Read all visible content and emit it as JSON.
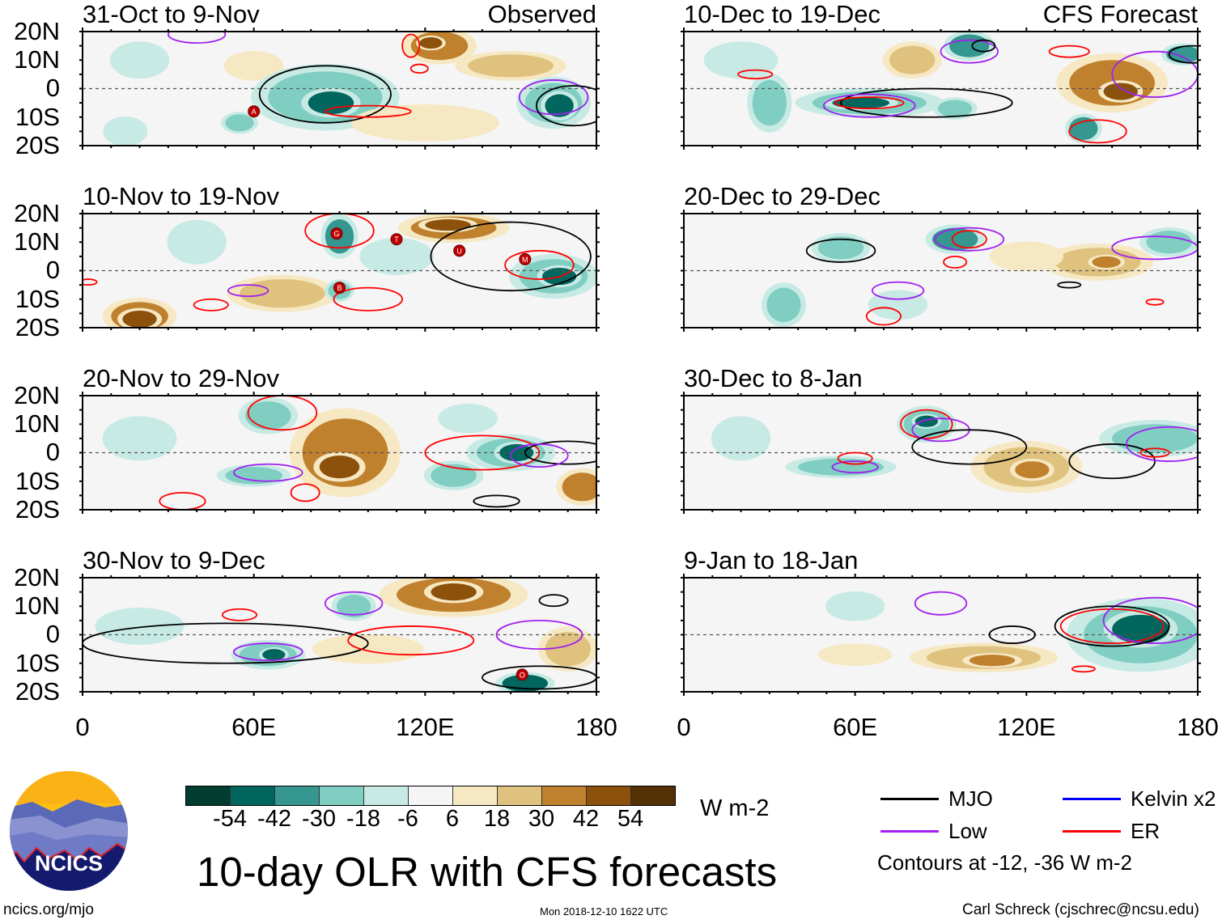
{
  "chart_data": {
    "type": "heatmap",
    "title": "10-day OLR with CFS forecasts",
    "units": "W m-2",
    "colorbar": {
      "ticks": [
        "-54",
        "-42",
        "-30",
        "-18",
        "-6",
        "6",
        "18",
        "30",
        "42",
        "54"
      ],
      "colors": [
        "#003c30",
        "#01665e",
        "#35978f",
        "#80cdc1",
        "#c7eae5",
        "#f5f5f5",
        "#f6e8c3",
        "#dfc27d",
        "#bf812d",
        "#8c510a",
        "#543005"
      ]
    },
    "lat_labels": [
      "20N",
      "10N",
      "0",
      "10S",
      "20S"
    ],
    "lon_labels": [
      "0",
      "60E",
      "120E",
      "180"
    ],
    "lon_range": [
      0,
      180
    ],
    "lat_range": [
      -20,
      20
    ],
    "contour_colors": {
      "MJO": "#000000",
      "Kelvin": "#0000ff",
      "Low": "#a020f0",
      "ER": "#ff0000"
    },
    "panels": [
      {
        "title": "31-Oct to 9-Nov",
        "tag": "Observed",
        "anomalies": [
          [
            60,
            8,
            8,
            4,
            15
          ],
          [
            85,
            -3,
            20,
            9,
            -20
          ],
          [
            87,
            -5,
            8,
            4,
            -45
          ],
          [
            55,
            -12,
            5,
            3,
            -25
          ],
          [
            125,
            15,
            10,
            5,
            30
          ],
          [
            122,
            16,
            4,
            2,
            45
          ],
          [
            150,
            8,
            15,
            4,
            25
          ],
          [
            20,
            10,
            8,
            5,
            -15
          ],
          [
            165,
            -5,
            10,
            7,
            -30
          ],
          [
            167,
            -6,
            5,
            4,
            -45
          ],
          [
            120,
            -12,
            20,
            5,
            10
          ],
          [
            15,
            -15,
            6,
            4,
            -10
          ]
        ],
        "contours": [
          [
            "MJO",
            85,
            -2,
            23,
            10
          ],
          [
            "ER",
            100,
            -8,
            15,
            2
          ],
          [
            "ER",
            115,
            15,
            3,
            4
          ],
          [
            "ER",
            118,
            7,
            3,
            1.5
          ],
          [
            "Low",
            165,
            -3,
            12,
            6
          ],
          [
            "MJO",
            172,
            -6,
            13,
            7
          ],
          [
            "Low",
            40,
            19,
            10,
            3
          ]
        ],
        "cyclones": [
          [
            "A",
            60,
            -8
          ]
        ]
      },
      {
        "title": "10-Nov to 19-Nov",
        "tag": "",
        "anomalies": [
          [
            20,
            -16,
            10,
            5,
            30
          ],
          [
            20,
            -17,
            6,
            3,
            45
          ],
          [
            70,
            -8,
            15,
            5,
            18
          ],
          [
            90,
            12,
            5,
            6,
            -40
          ],
          [
            90,
            -7,
            4,
            3,
            -25
          ],
          [
            130,
            15,
            15,
            4,
            35
          ],
          [
            128,
            16,
            8,
            2,
            45
          ],
          [
            165,
            -2,
            12,
            6,
            -30
          ],
          [
            167,
            -2,
            6,
            3,
            -45
          ],
          [
            40,
            10,
            8,
            6,
            -10
          ],
          [
            110,
            5,
            10,
            5,
            -15
          ]
        ],
        "contours": [
          [
            "ER",
            90,
            14,
            12,
            6
          ],
          [
            "ER",
            160,
            2,
            12,
            5
          ],
          [
            "Low",
            58,
            -7,
            7,
            2
          ],
          [
            "MJO",
            150,
            5,
            28,
            12
          ],
          [
            "ER",
            100,
            -10,
            12,
            4
          ],
          [
            "ER",
            45,
            -12,
            6,
            2
          ],
          [
            "ER",
            2,
            -4,
            3,
            1
          ]
        ],
        "cyclones": [
          [
            "G",
            89,
            13
          ],
          [
            "T",
            110,
            11
          ],
          [
            "U",
            132,
            7
          ],
          [
            "M",
            155,
            4
          ],
          [
            "B",
            90,
            -6
          ]
        ]
      },
      {
        "title": "20-Nov to 29-Nov",
        "tag": "",
        "anomalies": [
          [
            92,
            0,
            15,
            12,
            30
          ],
          [
            90,
            -5,
            7,
            4,
            45
          ],
          [
            65,
            13,
            8,
            5,
            -30
          ],
          [
            60,
            -8,
            10,
            3,
            -20
          ],
          [
            150,
            0,
            12,
            5,
            -30
          ],
          [
            152,
            0,
            6,
            3,
            -45
          ],
          [
            130,
            -8,
            8,
            4,
            -25
          ],
          [
            175,
            -12,
            7,
            5,
            30
          ],
          [
            135,
            12,
            8,
            4,
            -15
          ],
          [
            20,
            5,
            10,
            6,
            -10
          ]
        ],
        "contours": [
          [
            "ER",
            70,
            14,
            12,
            6
          ],
          [
            "ER",
            140,
            0,
            20,
            6
          ],
          [
            "MJO",
            170,
            0,
            15,
            4
          ],
          [
            "Low",
            160,
            -1,
            10,
            4
          ],
          [
            "Low",
            65,
            -7,
            12,
            3
          ],
          [
            "ER",
            35,
            -17,
            8,
            3
          ],
          [
            "MJO",
            145,
            -17,
            8,
            2
          ],
          [
            "ER",
            78,
            -14,
            5,
            3
          ]
        ],
        "cyclones": []
      },
      {
        "title": "30-Nov to 9-Dec",
        "tag": "",
        "anomalies": [
          [
            130,
            14,
            20,
            6,
            30
          ],
          [
            130,
            15,
            8,
            3,
            45
          ],
          [
            65,
            -7,
            10,
            4,
            -30
          ],
          [
            67,
            -7,
            4,
            2,
            -45
          ],
          [
            20,
            3,
            12,
            5,
            -18
          ],
          [
            155,
            -17,
            8,
            3,
            -54
          ],
          [
            95,
            10,
            6,
            4,
            -20
          ],
          [
            170,
            -5,
            8,
            6,
            25
          ],
          [
            100,
            -5,
            15,
            4,
            12
          ]
        ],
        "contours": [
          [
            "MJO",
            50,
            -3,
            50,
            7
          ],
          [
            "ER",
            115,
            -2,
            22,
            5
          ],
          [
            "Low",
            95,
            11,
            10,
            4
          ],
          [
            "ER",
            55,
            7,
            6,
            2
          ],
          [
            "Low",
            160,
            0,
            15,
            5
          ],
          [
            "MJO",
            160,
            -15,
            20,
            4
          ],
          [
            "Low",
            65,
            -6,
            12,
            3
          ],
          [
            "MJO",
            165,
            12,
            5,
            2
          ]
        ],
        "cyclones": [
          [
            "O",
            154,
            -14
          ]
        ]
      },
      {
        "title": "10-Dec to 19-Dec",
        "tag": "CFS Forecast",
        "anomalies": [
          [
            65,
            -5,
            20,
            4,
            -30
          ],
          [
            62,
            -5,
            10,
            2,
            -54
          ],
          [
            95,
            -7,
            6,
            3,
            -30
          ],
          [
            100,
            15,
            7,
            4,
            -35
          ],
          [
            150,
            2,
            15,
            8,
            30
          ],
          [
            153,
            -1,
            6,
            3,
            45
          ],
          [
            80,
            10,
            8,
            5,
            18
          ],
          [
            140,
            -14,
            5,
            4,
            -35
          ],
          [
            175,
            12,
            6,
            3,
            -40
          ],
          [
            30,
            -5,
            6,
            8,
            -25
          ],
          [
            20,
            10,
            10,
            5,
            -10
          ]
        ],
        "contours": [
          [
            "MJO",
            85,
            -5,
            30,
            5
          ],
          [
            "ER",
            65,
            -5,
            12,
            2
          ],
          [
            "Low",
            65,
            -6,
            16,
            4
          ],
          [
            "Low",
            100,
            13,
            10,
            4
          ],
          [
            "ER",
            135,
            13,
            7,
            2
          ],
          [
            "Low",
            165,
            5,
            15,
            8
          ],
          [
            "ER",
            145,
            -15,
            10,
            4
          ],
          [
            "MJO",
            178,
            12,
            8,
            3
          ],
          [
            "ER",
            25,
            5,
            6,
            1.5
          ],
          [
            "MJO",
            105,
            15,
            4,
            2
          ]
        ],
        "cyclones": []
      },
      {
        "title": "20-Dec to 29-Dec",
        "tag": "",
        "anomalies": [
          [
            55,
            8,
            8,
            4,
            -30
          ],
          [
            95,
            11,
            8,
            4,
            -35
          ],
          [
            170,
            10,
            8,
            4,
            -25
          ],
          [
            145,
            3,
            15,
            5,
            20
          ],
          [
            148,
            3,
            5,
            2,
            35
          ],
          [
            35,
            -12,
            6,
            6,
            -25
          ],
          [
            75,
            -12,
            8,
            4,
            -15
          ],
          [
            120,
            5,
            10,
            4,
            15
          ]
        ],
        "contours": [
          [
            "MJO",
            55,
            7,
            12,
            4
          ],
          [
            "Low",
            100,
            11,
            12,
            4
          ],
          [
            "ER",
            100,
            11,
            6,
            3
          ],
          [
            "ER",
            95,
            3,
            4,
            2
          ],
          [
            "Low",
            165,
            8,
            15,
            4
          ],
          [
            "Low",
            75,
            -7,
            9,
            3
          ],
          [
            "ER",
            70,
            -16,
            6,
            3
          ],
          [
            "MJO",
            135,
            -5,
            4,
            1
          ],
          [
            "ER",
            165,
            -11,
            3,
            1
          ]
        ],
        "cyclones": []
      },
      {
        "title": "30-Dec to 8-Jan",
        "tag": "",
        "anomalies": [
          [
            85,
            10,
            8,
            5,
            -30
          ],
          [
            85,
            11,
            4,
            2,
            -45
          ],
          [
            55,
            -5,
            15,
            3,
            -25
          ],
          [
            120,
            -5,
            15,
            7,
            20
          ],
          [
            122,
            -6,
            6,
            3,
            35
          ],
          [
            165,
            5,
            15,
            5,
            -20
          ],
          [
            20,
            5,
            8,
            6,
            -8
          ]
        ],
        "contours": [
          [
            "ER",
            85,
            10,
            9,
            5
          ],
          [
            "Low",
            90,
            8,
            10,
            4
          ],
          [
            "MJO",
            100,
            2,
            20,
            6
          ],
          [
            "MJO",
            150,
            -3,
            15,
            6
          ],
          [
            "Low",
            60,
            -5,
            8,
            2
          ],
          [
            "ER",
            60,
            -2,
            6,
            2
          ],
          [
            "Low",
            170,
            3,
            15,
            6
          ],
          [
            "ER",
            165,
            0,
            5,
            1.5
          ]
        ],
        "cyclones": []
      },
      {
        "title": "9-Jan to 18-Jan",
        "tag": "",
        "anomalies": [
          [
            160,
            0,
            20,
            10,
            -30
          ],
          [
            160,
            2,
            10,
            5,
            -45
          ],
          [
            105,
            -8,
            20,
            4,
            18
          ],
          [
            108,
            -9,
            8,
            2,
            30
          ],
          [
            60,
            -7,
            10,
            3,
            12
          ],
          [
            60,
            10,
            8,
            4,
            -10
          ]
        ],
        "contours": [
          [
            "Low",
            90,
            11,
            9,
            4
          ],
          [
            "MJO",
            115,
            0,
            8,
            3
          ],
          [
            "ER",
            150,
            3,
            18,
            6
          ],
          [
            "Low",
            165,
            5,
            18,
            8
          ],
          [
            "MJO",
            150,
            3,
            20,
            7
          ],
          [
            "ER",
            140,
            -12,
            4,
            1
          ]
        ],
        "cyclones": []
      }
    ]
  },
  "legend": {
    "units_label": "W m-2",
    "items": [
      {
        "label": "MJO",
        "color": "#000000"
      },
      {
        "label": "Kelvin x2",
        "color": "#0000ff"
      },
      {
        "label": "Low",
        "color": "#a020f0"
      },
      {
        "label": "ER",
        "color": "#ff0000"
      }
    ],
    "contour_note": "Contours at -12, -36 W m-2"
  },
  "logo": {
    "text": "NCICS"
  },
  "footer": {
    "url": "ncics.org/mjo",
    "timestamp": "Mon 2018-12-10 1622 UTC",
    "author": "Carl Schreck (cjschrec@ncsu.edu)"
  }
}
